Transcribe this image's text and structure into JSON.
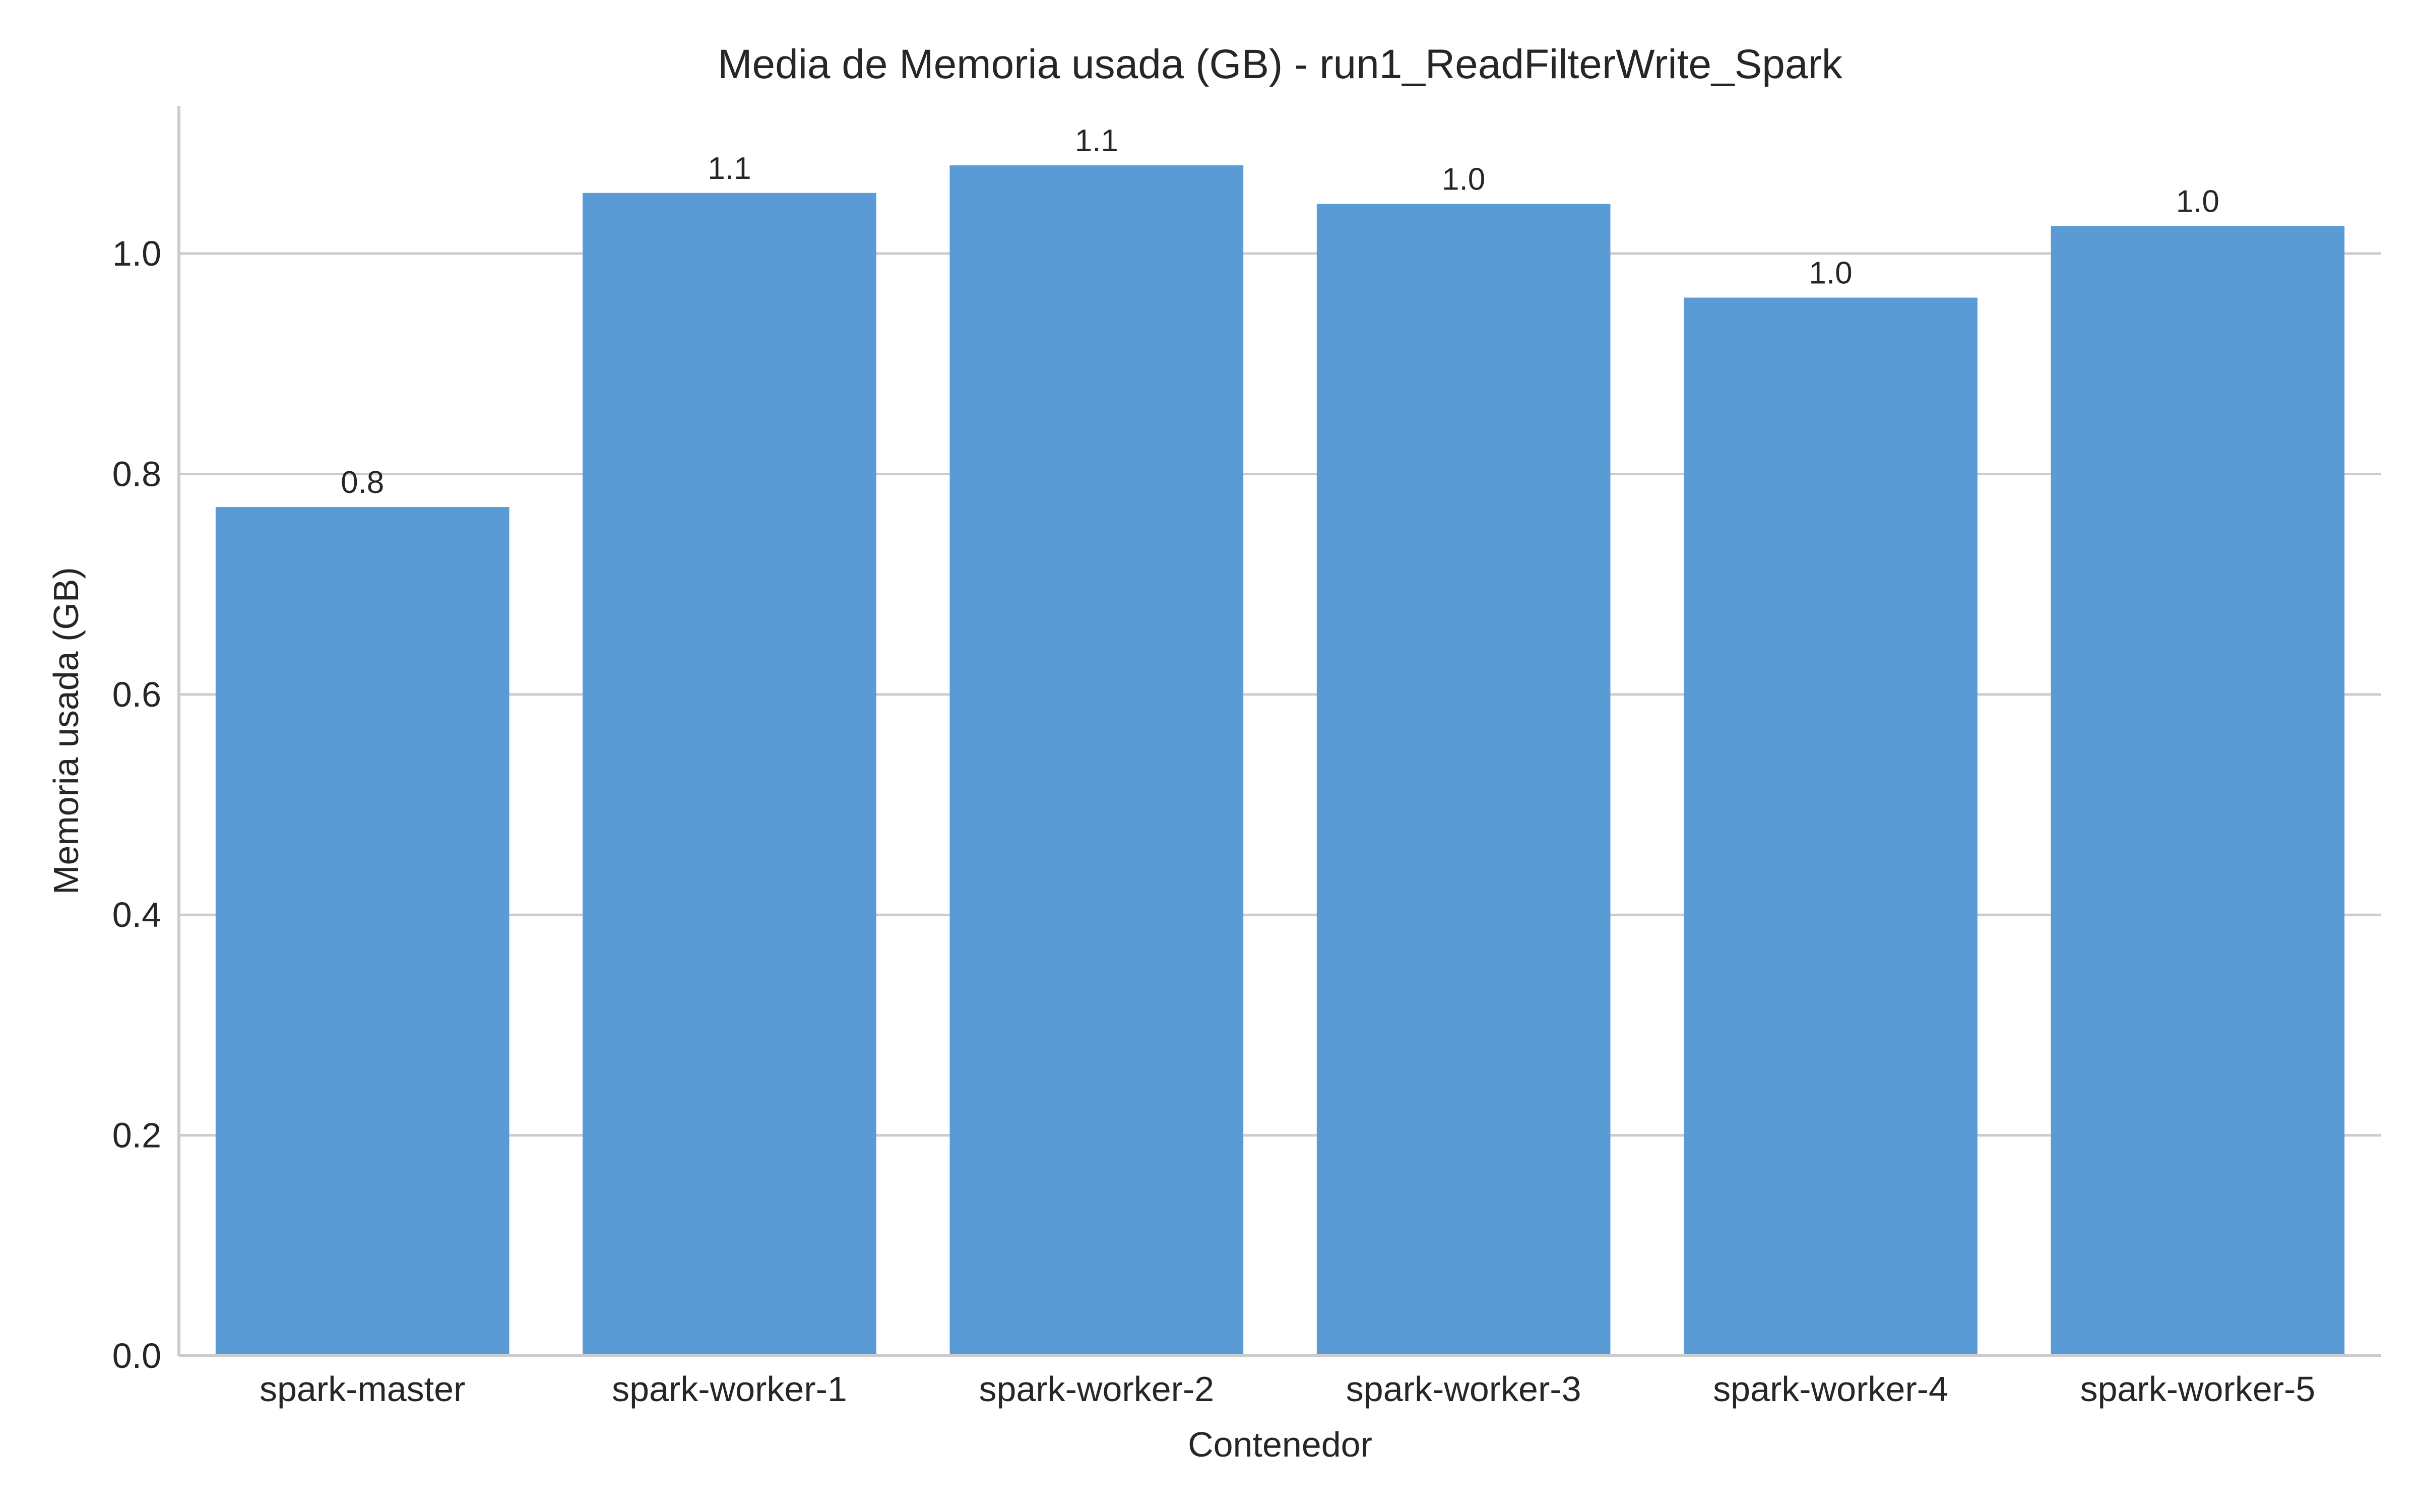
{
  "chart_data": {
    "type": "bar",
    "title": "Media de Memoria usada (GB) - run1_ReadFilterWrite_Spark",
    "xlabel": "Contenedor",
    "ylabel": "Memoria usada (GB)",
    "categories": [
      "spark-master",
      "spark-worker-1",
      "spark-worker-2",
      "spark-worker-3",
      "spark-worker-4",
      "spark-worker-5"
    ],
    "values": [
      0.77,
      1.055,
      1.08,
      1.045,
      0.96,
      1.025
    ],
    "data_labels": [
      "0.8",
      "1.1",
      "1.1",
      "1.0",
      "1.0",
      "1.0"
    ],
    "ylim": [
      0,
      1.134
    ],
    "yticks": [
      0.0,
      0.2,
      0.4,
      0.6,
      0.8,
      1.0
    ],
    "ytick_labels": [
      "0.0",
      "0.2",
      "0.4",
      "0.6",
      "0.8",
      "1.0"
    ],
    "grid": "y",
    "bar_color": "#5b9bd5"
  }
}
